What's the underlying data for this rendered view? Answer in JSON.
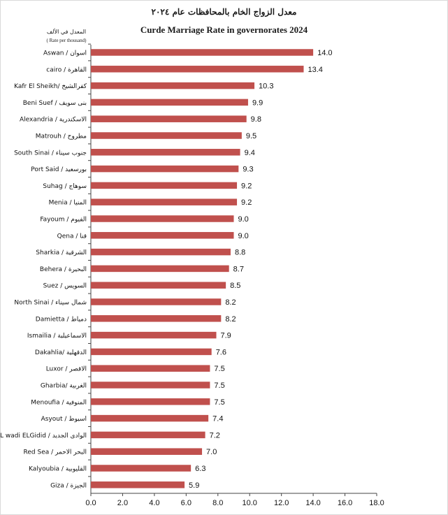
{
  "chart_data": {
    "type": "bar",
    "orientation": "horizontal",
    "title": "معدل الزواج الخام بالمحافظات عام ٢٠٢٤",
    "subtitle": "Curde Marriage Rate in governorates 2024",
    "unit_label_ar": "المعدل في الألف",
    "unit_label_en": "( Rate per thousand)",
    "xlim": [
      0,
      18
    ],
    "xticks": [
      "0.0",
      "2.0",
      "4.0",
      "6.0",
      "8.0",
      "10.0",
      "12.0",
      "14.0",
      "16.0",
      "18.0"
    ],
    "bar_color": "#c0504d",
    "categories": [
      "Aswan / اسوان",
      "cairo / القاهرة",
      "Kafr El Sheikh/ كفرالشيخ",
      "Beni Suef / بنى سويف",
      "Alexandria / الاسكندرية",
      "Matrouh / مطروح",
      "South Sinai / جنوب سيناء",
      "Port Said / بورسعيد",
      "Suhag / سوهاج",
      "Menia / المنيا",
      "Fayoum / الفيوم",
      "Qena / قنا",
      "Sharkia / الشرقية",
      "Behera / البحيرة",
      "Suez / السويس",
      "North Sinai / شمال سيناء",
      "Damietta / دمياط",
      "Ismailia / الاسماعيلية",
      "Dakahlia/ الدقهلية",
      "Luxor / الاقصر",
      "Gharbia/ الغربية",
      "Menoufia / المنوفية",
      "Asyout / اسيوط",
      "EL wadi ELGidid / الوادى الجديد",
      "Red Sea / البحر الاحمر",
      "Kalyoubia / القليوبية",
      "Giza / الجيزة"
    ],
    "values": [
      14.0,
      13.4,
      10.3,
      9.9,
      9.8,
      9.5,
      9.4,
      9.3,
      9.2,
      9.2,
      9.0,
      9.0,
      8.8,
      8.7,
      8.5,
      8.2,
      8.2,
      7.9,
      7.6,
      7.5,
      7.5,
      7.5,
      7.4,
      7.2,
      7.0,
      6.3,
      5.9
    ],
    "value_labels": [
      "14.0",
      "13.4",
      "10.3",
      "9.9",
      "9.8",
      "9.5",
      "9.4",
      "9.3",
      "9.2",
      "9.2",
      "9.0",
      "9.0",
      "8.8",
      "8.7",
      "8.5",
      "8.2",
      "8.2",
      "7.9",
      "7.6",
      "7.5",
      "7.5",
      "7.5",
      "7.4",
      "7.2",
      "7.0",
      "6.3",
      "5.9"
    ]
  }
}
